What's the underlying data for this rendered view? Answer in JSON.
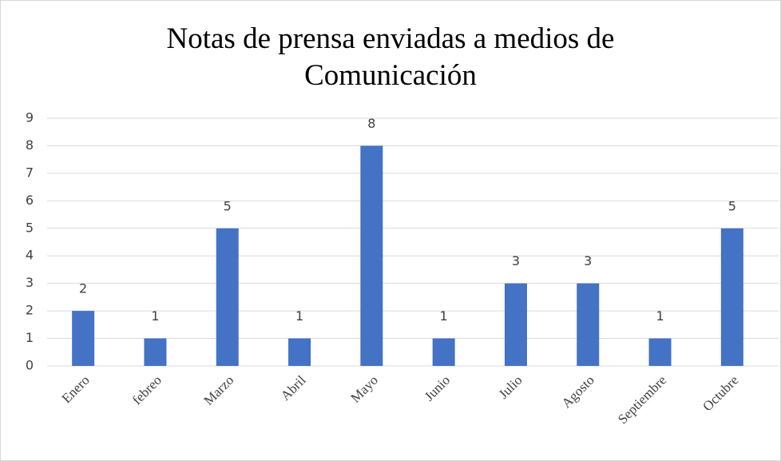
{
  "chart_data": {
    "type": "bar",
    "title": "Notas de prensa enviadas a medios de Comunicación",
    "categories": [
      "Enero",
      "febreo",
      "Marzo",
      "Abril",
      "Mayo",
      "Junio",
      "Julio",
      "Agosto",
      "Septiembre",
      "Octubre"
    ],
    "values": [
      2,
      1,
      5,
      1,
      8,
      1,
      3,
      3,
      1,
      5
    ],
    "color": "#4472c4",
    "ylim": [
      0,
      9
    ],
    "yticks": [
      0,
      1,
      2,
      3,
      4,
      5,
      6,
      7,
      8,
      9
    ],
    "grid": true
  }
}
